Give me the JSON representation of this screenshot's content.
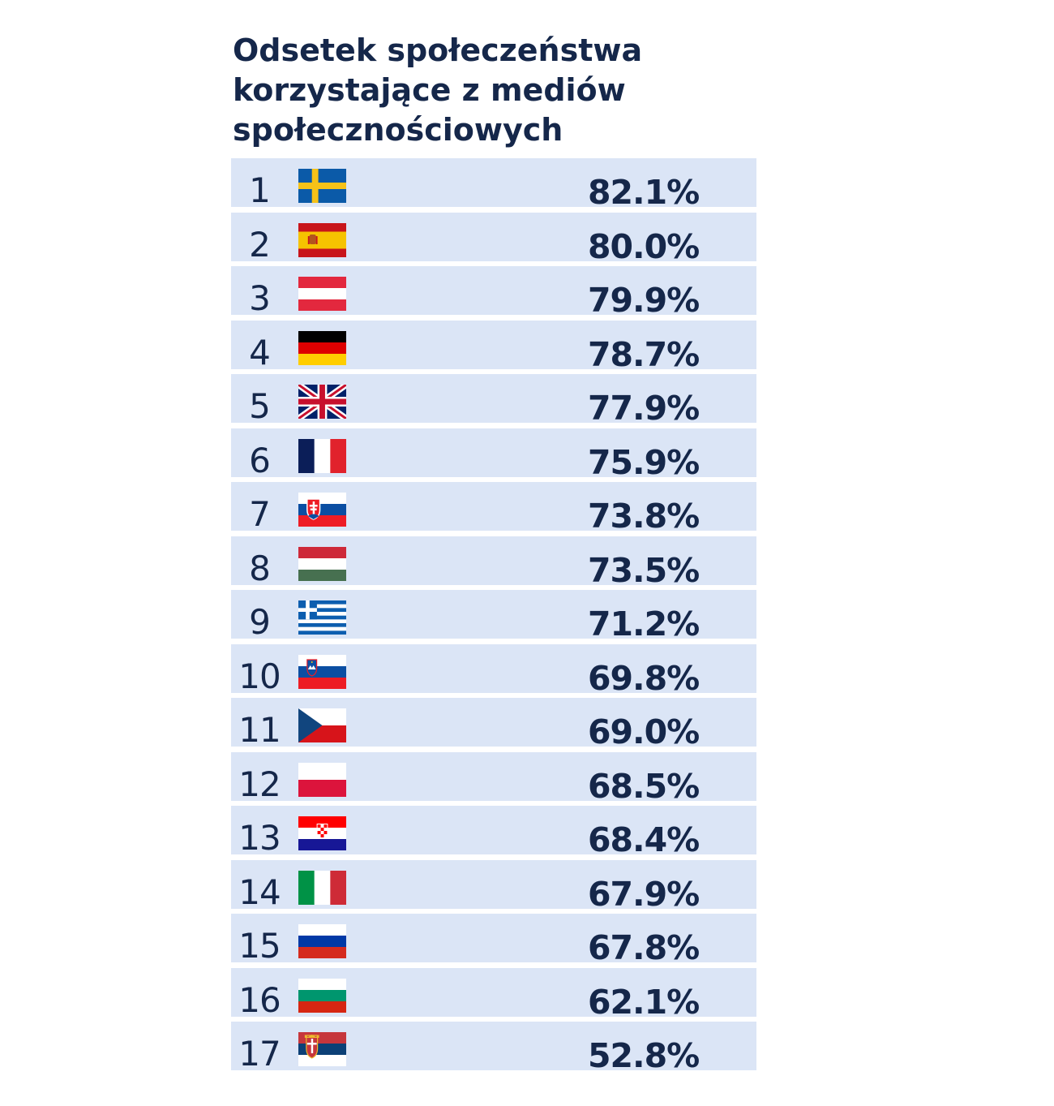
{
  "chart_data": {
    "type": "table",
    "title": "Odsetek społeczeństwa korzystające z mediów społecznościowych",
    "rows": [
      {
        "rank": "1",
        "flag": "flag-sweden",
        "value": "82.1%",
        "pct": 82.1
      },
      {
        "rank": "2",
        "flag": "flag-spain",
        "value": "80.0%",
        "pct": 80.0
      },
      {
        "rank": "3",
        "flag": "flag-austria",
        "value": "79.9%",
        "pct": 79.9
      },
      {
        "rank": "4",
        "flag": "flag-germany",
        "value": "78.7%",
        "pct": 78.7
      },
      {
        "rank": "5",
        "flag": "flag-united-kingdom",
        "value": "77.9%",
        "pct": 77.9
      },
      {
        "rank": "6",
        "flag": "flag-france",
        "value": "75.9%",
        "pct": 75.9
      },
      {
        "rank": "7",
        "flag": "flag-slovakia",
        "value": "73.8%",
        "pct": 73.8
      },
      {
        "rank": "8",
        "flag": "flag-hungary",
        "value": "73.5%",
        "pct": 73.5
      },
      {
        "rank": "9",
        "flag": "flag-greece",
        "value": "71.2%",
        "pct": 71.2
      },
      {
        "rank": "10",
        "flag": "flag-slovenia",
        "value": "69.8%",
        "pct": 69.8
      },
      {
        "rank": "11",
        "flag": "flag-czech-republic",
        "value": "69.0%",
        "pct": 69.0
      },
      {
        "rank": "12",
        "flag": "flag-poland",
        "value": "68.5%",
        "pct": 68.5
      },
      {
        "rank": "13",
        "flag": "flag-croatia",
        "value": "68.4%",
        "pct": 68.4
      },
      {
        "rank": "14",
        "flag": "flag-italy",
        "value": "67.9%",
        "pct": 67.9
      },
      {
        "rank": "15",
        "flag": "flag-russia",
        "value": "67.8%",
        "pct": 67.8
      },
      {
        "rank": "16",
        "flag": "flag-bulgaria",
        "value": "62.1%",
        "pct": 62.1
      },
      {
        "rank": "17",
        "flag": "flag-serbia",
        "value": "52.8%",
        "pct": 52.8
      }
    ]
  },
  "colors": {
    "row_background": "#dbe5f6",
    "text": "#15274a"
  }
}
